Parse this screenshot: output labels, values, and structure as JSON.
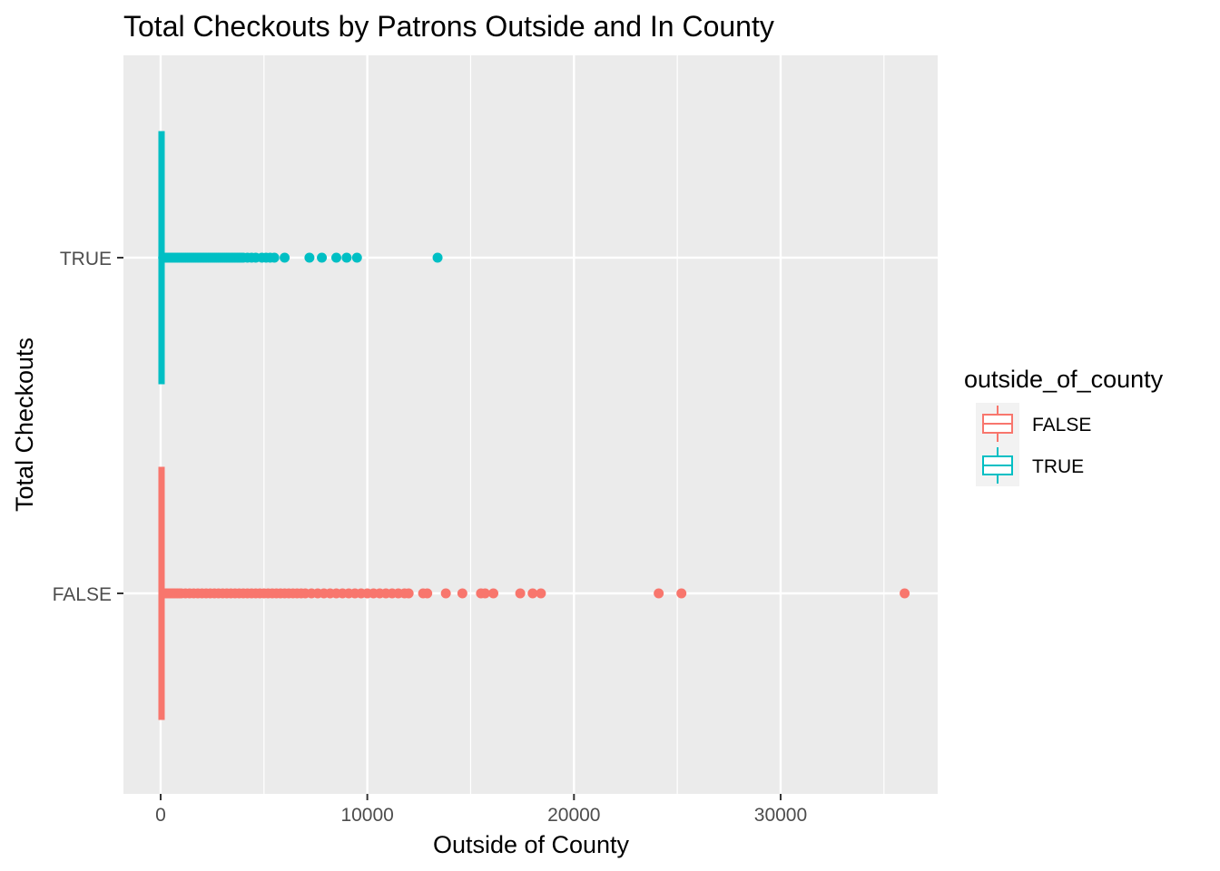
{
  "chart_data": {
    "type": "boxplot",
    "orientation": "horizontal",
    "title": "Total Checkouts by Patrons Outside and In County",
    "xlabel": "Outside of County",
    "ylabel": "Total Checkouts",
    "xlim": [
      -1800,
      37600
    ],
    "x_ticks": [
      0,
      10000,
      20000,
      30000
    ],
    "x_tick_labels": [
      "0",
      "10000",
      "20000",
      "30000"
    ],
    "categories": [
      "TRUE",
      "FALSE"
    ],
    "legend": {
      "title": "outside_of_county",
      "position": "right",
      "entries": [
        {
          "label": "FALSE",
          "color": "#F8766D"
        },
        {
          "label": "TRUE",
          "color": "#00BFC4"
        }
      ]
    },
    "grid": true,
    "panel_background": "#EBEBEB",
    "series": [
      {
        "name": "TRUE",
        "color": "#00BFC4",
        "median": 0,
        "q1": 0,
        "q3": 40,
        "whisker_low": 0,
        "whisker_high": 100,
        "outliers": [
          120,
          200,
          300,
          400,
          500,
          600,
          700,
          800,
          900,
          1000,
          1100,
          1200,
          1300,
          1400,
          1500,
          1600,
          1700,
          1800,
          1900,
          2000,
          2100,
          2200,
          2300,
          2400,
          2500,
          2600,
          2700,
          2800,
          2900,
          3000,
          3100,
          3200,
          3300,
          3400,
          3500,
          3600,
          3700,
          3800,
          3900,
          4000,
          4200,
          4400,
          4600,
          4900,
          5100,
          5300,
          5500,
          6000,
          7200,
          7800,
          8500,
          9000,
          9500,
          13400
        ]
      },
      {
        "name": "FALSE",
        "color": "#F8766D",
        "median": 0,
        "q1": 0,
        "q3": 60,
        "whisker_low": 0,
        "whisker_high": 150,
        "outliers": [
          200,
          300,
          400,
          500,
          600,
          700,
          800,
          900,
          1000,
          1200,
          1400,
          1600,
          1800,
          2000,
          2200,
          2400,
          2600,
          2800,
          3000,
          3200,
          3400,
          3600,
          3800,
          4000,
          4200,
          4400,
          4600,
          4800,
          5000,
          5200,
          5400,
          5600,
          5800,
          6000,
          6200,
          6400,
          6600,
          6800,
          7000,
          7300,
          7600,
          7900,
          8200,
          8500,
          8800,
          9100,
          9400,
          9700,
          10000,
          10300,
          10600,
          10900,
          11200,
          11500,
          11800,
          12000,
          12700,
          12900,
          13800,
          14600,
          15500,
          15700,
          16100,
          17400,
          18000,
          18400,
          24100,
          25200,
          36000
        ]
      }
    ]
  }
}
